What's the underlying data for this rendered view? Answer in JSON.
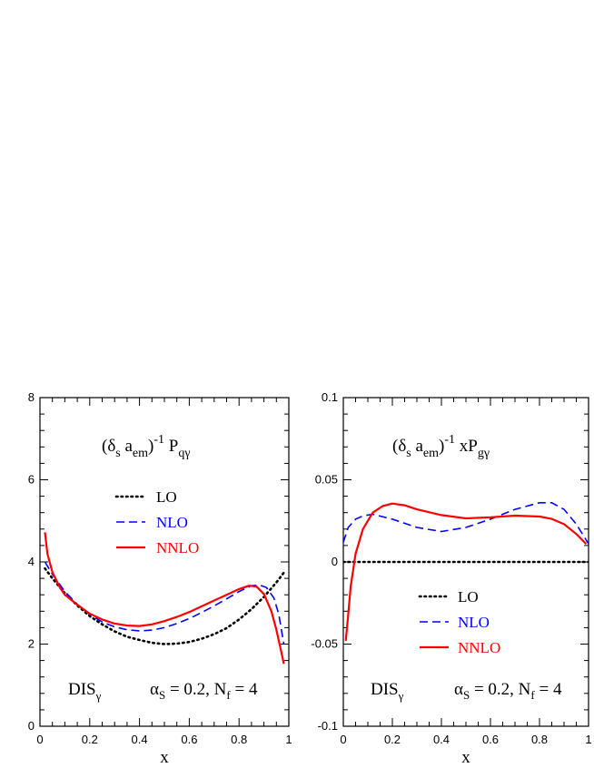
{
  "chart_data": [
    {
      "type": "line",
      "title_parts": {
        "open": "(δ",
        "s_sub": "s",
        "a": " a",
        "em_sub": "em",
        "close": ")",
        "sup": "-1",
        "p": " P",
        "p_sub": "qγ"
      },
      "xlabel": "x",
      "ylabel": "",
      "xlim": [
        0,
        1
      ],
      "ylim": [
        0,
        8
      ],
      "xticks": [
        "0",
        "0.2",
        "0.4",
        "0.6",
        "0.8",
        "1"
      ],
      "yticks": [
        "0",
        "2",
        "4",
        "6",
        "8"
      ],
      "ytick_values": [
        0,
        2,
        4,
        6,
        8
      ],
      "legend_position": "upper-middle",
      "annotation_left": {
        "main": "DIS",
        "sub": "γ"
      },
      "annotation_right": {
        "alpha": "α",
        "alpha_sub": "S",
        "mid": " = 0.2, N",
        "n_sub": "f",
        "end": " = 4"
      },
      "series": [
        {
          "name": "LO",
          "color": "#000000",
          "style": "dotted",
          "x": [
            0.02,
            0.05,
            0.1,
            0.15,
            0.2,
            0.25,
            0.3,
            0.35,
            0.4,
            0.45,
            0.5,
            0.55,
            0.6,
            0.65,
            0.7,
            0.75,
            0.8,
            0.85,
            0.9,
            0.95,
            0.98
          ],
          "y": [
            3.84,
            3.6,
            3.24,
            2.94,
            2.68,
            2.48,
            2.31,
            2.18,
            2.1,
            2.03,
            2.0,
            2.01,
            2.05,
            2.13,
            2.24,
            2.39,
            2.6,
            2.85,
            3.15,
            3.5,
            3.74
          ]
        },
        {
          "name": "NLO",
          "color": "#0000ff",
          "style": "dashed",
          "x": [
            0.02,
            0.05,
            0.1,
            0.15,
            0.2,
            0.25,
            0.3,
            0.35,
            0.4,
            0.45,
            0.5,
            0.55,
            0.6,
            0.65,
            0.7,
            0.75,
            0.8,
            0.85,
            0.88,
            0.91,
            0.94,
            0.96,
            0.98
          ],
          "y": [
            4.0,
            3.7,
            3.28,
            2.97,
            2.72,
            2.54,
            2.42,
            2.35,
            2.32,
            2.34,
            2.4,
            2.5,
            2.62,
            2.77,
            2.93,
            3.1,
            3.28,
            3.42,
            3.44,
            3.38,
            3.12,
            2.72,
            2.0
          ]
        },
        {
          "name": "NNLO",
          "color": "#ff0000",
          "style": "solid",
          "x": [
            0.02,
            0.03,
            0.05,
            0.08,
            0.1,
            0.15,
            0.2,
            0.25,
            0.3,
            0.35,
            0.4,
            0.45,
            0.5,
            0.55,
            0.6,
            0.65,
            0.7,
            0.75,
            0.8,
            0.84,
            0.87,
            0.9,
            0.93,
            0.95,
            0.97,
            0.98
          ],
          "y": [
            4.72,
            4.2,
            3.75,
            3.38,
            3.2,
            2.96,
            2.74,
            2.6,
            2.5,
            2.45,
            2.44,
            2.48,
            2.56,
            2.66,
            2.78,
            2.92,
            3.06,
            3.2,
            3.34,
            3.42,
            3.4,
            3.22,
            2.8,
            2.35,
            1.8,
            1.52
          ]
        }
      ]
    },
    {
      "type": "line",
      "title_parts": {
        "open": "(δ",
        "s_sub": "s",
        "a": " a",
        "em_sub": "em",
        "close": ")",
        "sup": "-1",
        "p": " xP",
        "p_sub": "gγ"
      },
      "xlabel": "x",
      "ylabel": "",
      "xlim": [
        0,
        1
      ],
      "ylim": [
        -0.1,
        0.1
      ],
      "xticks": [
        "0",
        "0.2",
        "0.4",
        "0.6",
        "0.8",
        "1"
      ],
      "yticks": [
        "-0.1",
        "-0.05",
        "0",
        "0.05",
        "0.1"
      ],
      "ytick_values": [
        -0.1,
        -0.05,
        0,
        0.05,
        0.1
      ],
      "legend_position": "lower-middle",
      "annotation_left": {
        "main": "DIS",
        "sub": "γ"
      },
      "annotation_right": {
        "alpha": "α",
        "alpha_sub": "S",
        "mid": " = 0.2, N",
        "n_sub": "f",
        "end": " = 4"
      },
      "series": [
        {
          "name": "LO",
          "color": "#000000",
          "style": "dotted",
          "x": [
            0.0,
            1.0
          ],
          "y": [
            0.0,
            0.0
          ]
        },
        {
          "name": "NLO",
          "color": "#0000ff",
          "style": "dashed",
          "x": [
            0.0,
            0.02,
            0.05,
            0.08,
            0.12,
            0.2,
            0.3,
            0.4,
            0.5,
            0.6,
            0.7,
            0.8,
            0.85,
            0.9,
            0.95,
            1.0
          ],
          "y": [
            0.012,
            0.021,
            0.026,
            0.028,
            0.029,
            0.026,
            0.021,
            0.0185,
            0.021,
            0.026,
            0.032,
            0.036,
            0.036,
            0.032,
            0.023,
            0.011
          ]
        },
        {
          "name": "NNLO",
          "color": "#ff0000",
          "style": "solid",
          "x": [
            0.01,
            0.02,
            0.03,
            0.05,
            0.08,
            0.12,
            0.16,
            0.2,
            0.25,
            0.3,
            0.4,
            0.5,
            0.6,
            0.7,
            0.8,
            0.85,
            0.9,
            0.95,
            0.99
          ],
          "y": [
            -0.048,
            -0.032,
            -0.015,
            0.005,
            0.02,
            0.03,
            0.034,
            0.0355,
            0.0345,
            0.032,
            0.0285,
            0.0265,
            0.0272,
            0.0282,
            0.0276,
            0.0262,
            0.023,
            0.017,
            0.011
          ]
        }
      ]
    }
  ]
}
